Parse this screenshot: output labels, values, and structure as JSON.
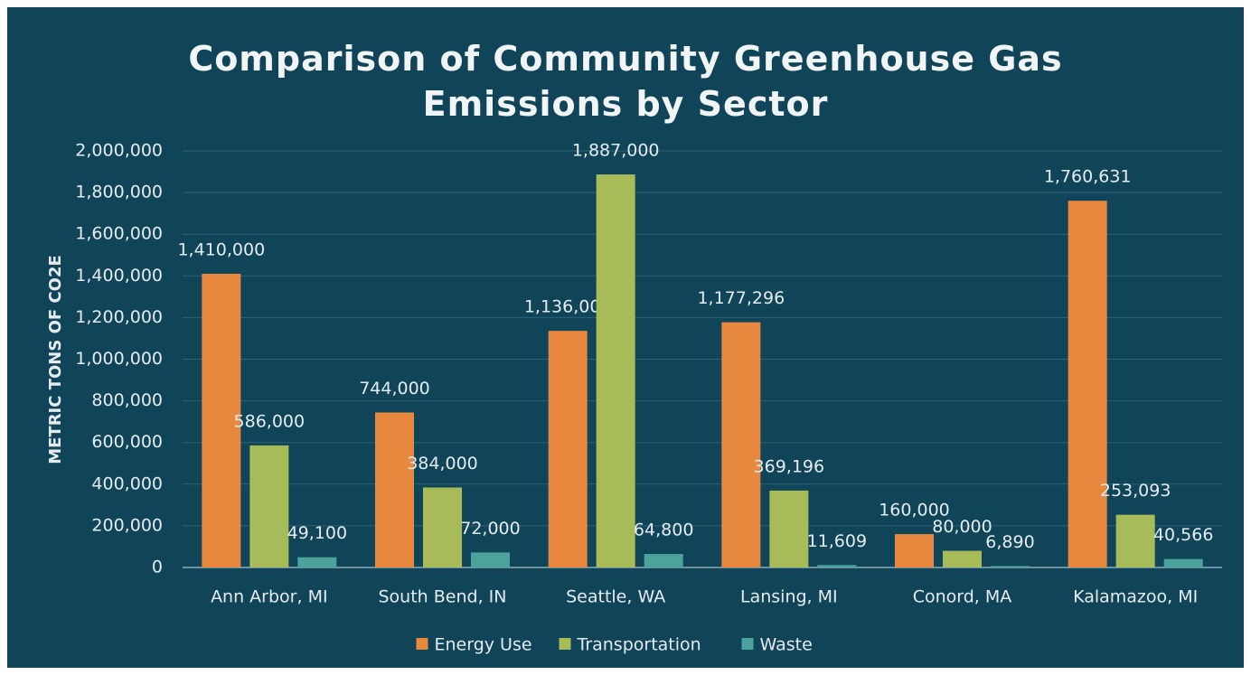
{
  "chart_data": {
    "type": "bar",
    "title": "Comparison of Community Greenhouse Gas Emissions by Sector",
    "y_label": "METRIC TONS OF CO2E",
    "categories": [
      "Ann Arbor, MI",
      "South Bend, IN",
      "Seattle, WA",
      "Lansing, MI",
      "Conord, MA",
      "Kalamazoo, MI"
    ],
    "series": [
      {
        "name": "Energy Use",
        "color": "#e8883f",
        "values": [
          1410000,
          744000,
          1136000,
          1177296,
          160000,
          1760631
        ],
        "value_labels": [
          "1,410,000",
          "744,000",
          "1,136,000",
          "1,177,296",
          "160,000",
          "1,760,631"
        ]
      },
      {
        "name": "Transportation",
        "color": "#a8bb59",
        "values": [
          586000,
          384000,
          1887000,
          369196,
          80000,
          253093
        ],
        "value_labels": [
          "586,000",
          "384,000",
          "1,887,000",
          "369,196",
          "80,000",
          "253,093"
        ]
      },
      {
        "name": "Waste",
        "color": "#4ba39c",
        "values": [
          49100,
          72000,
          64800,
          11609,
          6890,
          40566
        ],
        "value_labels": [
          "49,100",
          "72,000",
          "64,800",
          "11,609",
          "6,890",
          "40,566"
        ]
      }
    ],
    "ylim": [
      0,
      2000000
    ],
    "yticks": [
      {
        "value": 0,
        "label": "0"
      },
      {
        "value": 200000,
        "label": "200,000"
      },
      {
        "value": 400000,
        "label": "400,000"
      },
      {
        "value": 600000,
        "label": "600,000"
      },
      {
        "value": 800000,
        "label": "800,000"
      },
      {
        "value": 1000000,
        "label": "1,000,000"
      },
      {
        "value": 1200000,
        "label": "1,200,000"
      },
      {
        "value": 1400000,
        "label": "1,400,000"
      },
      {
        "value": 1600000,
        "label": "1,600,000"
      },
      {
        "value": 1800000,
        "label": "1,800,000"
      },
      {
        "value": 2000000,
        "label": "2,000,000"
      }
    ],
    "grid": true,
    "legend": "bottom"
  }
}
